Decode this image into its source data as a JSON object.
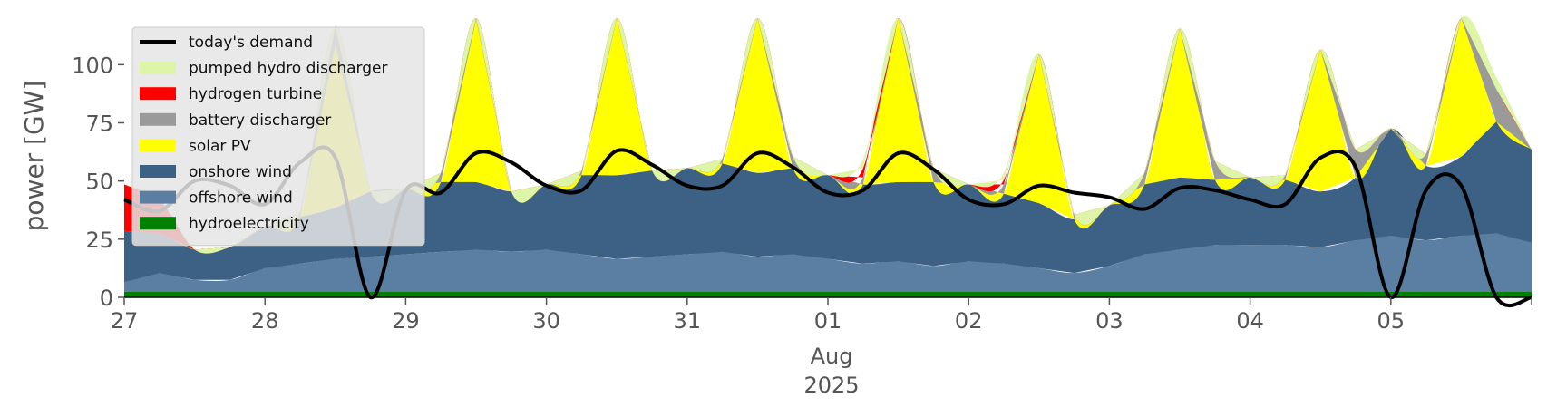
{
  "chart_data": {
    "type": "area",
    "ylabel": "power [GW]",
    "ylim": [
      0,
      120
    ],
    "yticks": [
      0,
      25,
      50,
      75,
      100
    ],
    "x_start": "2025-07-27T00:00",
    "x_end": "2025-08-06T00:00",
    "x_tick_labels": [
      "27",
      "28",
      "29",
      "30",
      "31",
      "01",
      "02",
      "03",
      "04",
      "05"
    ],
    "x_month_label": "Aug",
    "x_year_label": "2025",
    "legend_position": "upper-left",
    "grid": false,
    "hour_marks": [
      0,
      6,
      12,
      18
    ],
    "stacked_series": [
      {
        "name": "hydroelectricity",
        "color": "#008000",
        "values": [
          2.5,
          2.5,
          2.5,
          2.5,
          2.5,
          2.5,
          2.5,
          2.5,
          2.5,
          2.5,
          2.5,
          2.5,
          2.5,
          2.5,
          2.5,
          2.5,
          2.5,
          2.5,
          2.5,
          2.5,
          2.5,
          2.5,
          2.5,
          2.5,
          2.5,
          2.5,
          2.5,
          2.5,
          2.5,
          2.5,
          2.5,
          2.5,
          2.5,
          2.5,
          2.5,
          2.5,
          2.5,
          2.5,
          2.5,
          2.5,
          2.5
        ]
      },
      {
        "name": "offshore wind",
        "color": "#5b7fa3",
        "values": [
          4,
          8,
          5,
          5,
          10,
          12,
          14,
          15,
          16,
          17,
          18,
          17,
          18,
          16,
          14,
          15,
          16,
          17,
          15,
          16,
          14,
          12,
          13,
          11,
          13,
          12,
          10,
          8,
          11,
          16,
          18,
          20,
          20,
          20,
          19,
          22,
          24,
          22,
          24,
          25,
          21
        ]
      },
      {
        "name": "onshore wind",
        "color": "#3c6184",
        "values": [
          22,
          17,
          13,
          14,
          18,
          20,
          22,
          28,
          28,
          30,
          29,
          26,
          28,
          34,
          36,
          37,
          37,
          38,
          36,
          37,
          36,
          34,
          34,
          36,
          33,
          30,
          28,
          23,
          26,
          30,
          31,
          28,
          29,
          28,
          24,
          27,
          46,
          32,
          34,
          48,
          40
        ]
      },
      {
        "name": "solar PV",
        "color": "#ffff00",
        "values": [
          0,
          0,
          0,
          0,
          0,
          0,
          70,
          0,
          0,
          0,
          70,
          0,
          0,
          0,
          70,
          0,
          0,
          0,
          80,
          0,
          0,
          0,
          75,
          0,
          0,
          0,
          64,
          0,
          0,
          0,
          64,
          0,
          0,
          0,
          61,
          0,
          0,
          0,
          60,
          0,
          0
        ]
      },
      {
        "name": "battery discharger",
        "color": "#9a9a9a",
        "values": [
          0,
          0,
          0,
          0,
          0,
          2,
          8,
          0,
          0,
          4,
          2,
          0,
          0,
          2,
          0,
          0,
          0,
          2,
          0,
          5,
          0,
          3,
          0,
          6,
          0,
          4,
          0,
          2,
          0,
          5,
          0,
          8,
          0,
          2,
          0,
          12,
          0,
          5,
          0,
          14,
          0
        ]
      },
      {
        "name": "hydrogen turbine",
        "color": "#ff0000",
        "values": [
          20,
          15,
          0,
          0,
          0,
          0,
          0,
          0,
          0,
          0,
          0,
          0,
          0,
          0,
          0,
          0,
          0,
          0,
          0,
          0,
          0,
          4,
          0,
          0,
          0,
          2,
          0,
          0,
          0,
          0,
          0,
          0,
          0,
          0,
          0,
          0,
          0,
          0,
          0,
          0,
          0
        ]
      },
      {
        "name": "pumped hydro discharger",
        "color": "#dcf5a6",
        "values": [
          0,
          0,
          0,
          0,
          0,
          0,
          0,
          0,
          0,
          0,
          0,
          0,
          0,
          0,
          0,
          0,
          0,
          0,
          0,
          0,
          0,
          4,
          0,
          0,
          0,
          3,
          0,
          0,
          0,
          0,
          0,
          0,
          0,
          0,
          0,
          0,
          0,
          0,
          0,
          5,
          0
        ]
      }
    ],
    "demand_series": {
      "name": "today's demand",
      "color": "#000000",
      "values": [
        42,
        37,
        50,
        48,
        40,
        58,
        60,
        0,
        46,
        45,
        62,
        58,
        48,
        46,
        63,
        57,
        48,
        48,
        62,
        56,
        45,
        46,
        62,
        55,
        42,
        40,
        48,
        45,
        43,
        38,
        47,
        46,
        42,
        40,
        60,
        56,
        0,
        46,
        48,
        0,
        0
      ]
    }
  }
}
